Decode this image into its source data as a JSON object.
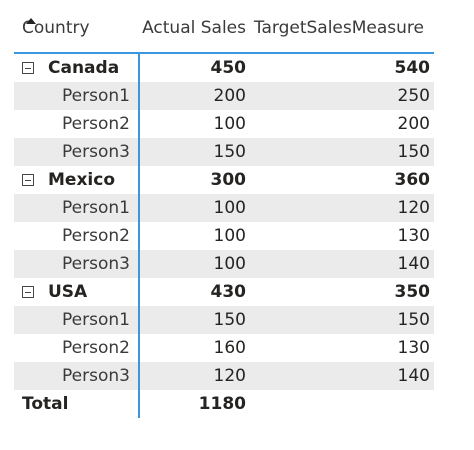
{
  "header": {
    "country": "Country",
    "actual_sales": "Actual Sales",
    "target_sales": "TargetSalesMeasure"
  },
  "groups": [
    {
      "name": "Canada",
      "actual": "450",
      "target": "540",
      "people": [
        {
          "name": "Person1",
          "actual": "200",
          "target": "250"
        },
        {
          "name": "Person2",
          "actual": "100",
          "target": "200"
        },
        {
          "name": "Person3",
          "actual": "150",
          "target": "150"
        }
      ]
    },
    {
      "name": "Mexico",
      "actual": "300",
      "target": "360",
      "people": [
        {
          "name": "Person1",
          "actual": "100",
          "target": "120"
        },
        {
          "name": "Person2",
          "actual": "100",
          "target": "130"
        },
        {
          "name": "Person3",
          "actual": "100",
          "target": "140"
        }
      ]
    },
    {
      "name": "USA",
      "actual": "430",
      "target": "350",
      "people": [
        {
          "name": "Person1",
          "actual": "150",
          "target": "150"
        },
        {
          "name": "Person2",
          "actual": "160",
          "target": "130"
        },
        {
          "name": "Person3",
          "actual": "120",
          "target": "140"
        }
      ]
    }
  ],
  "total": {
    "label": "Total",
    "actual": "1180",
    "target": ""
  }
}
